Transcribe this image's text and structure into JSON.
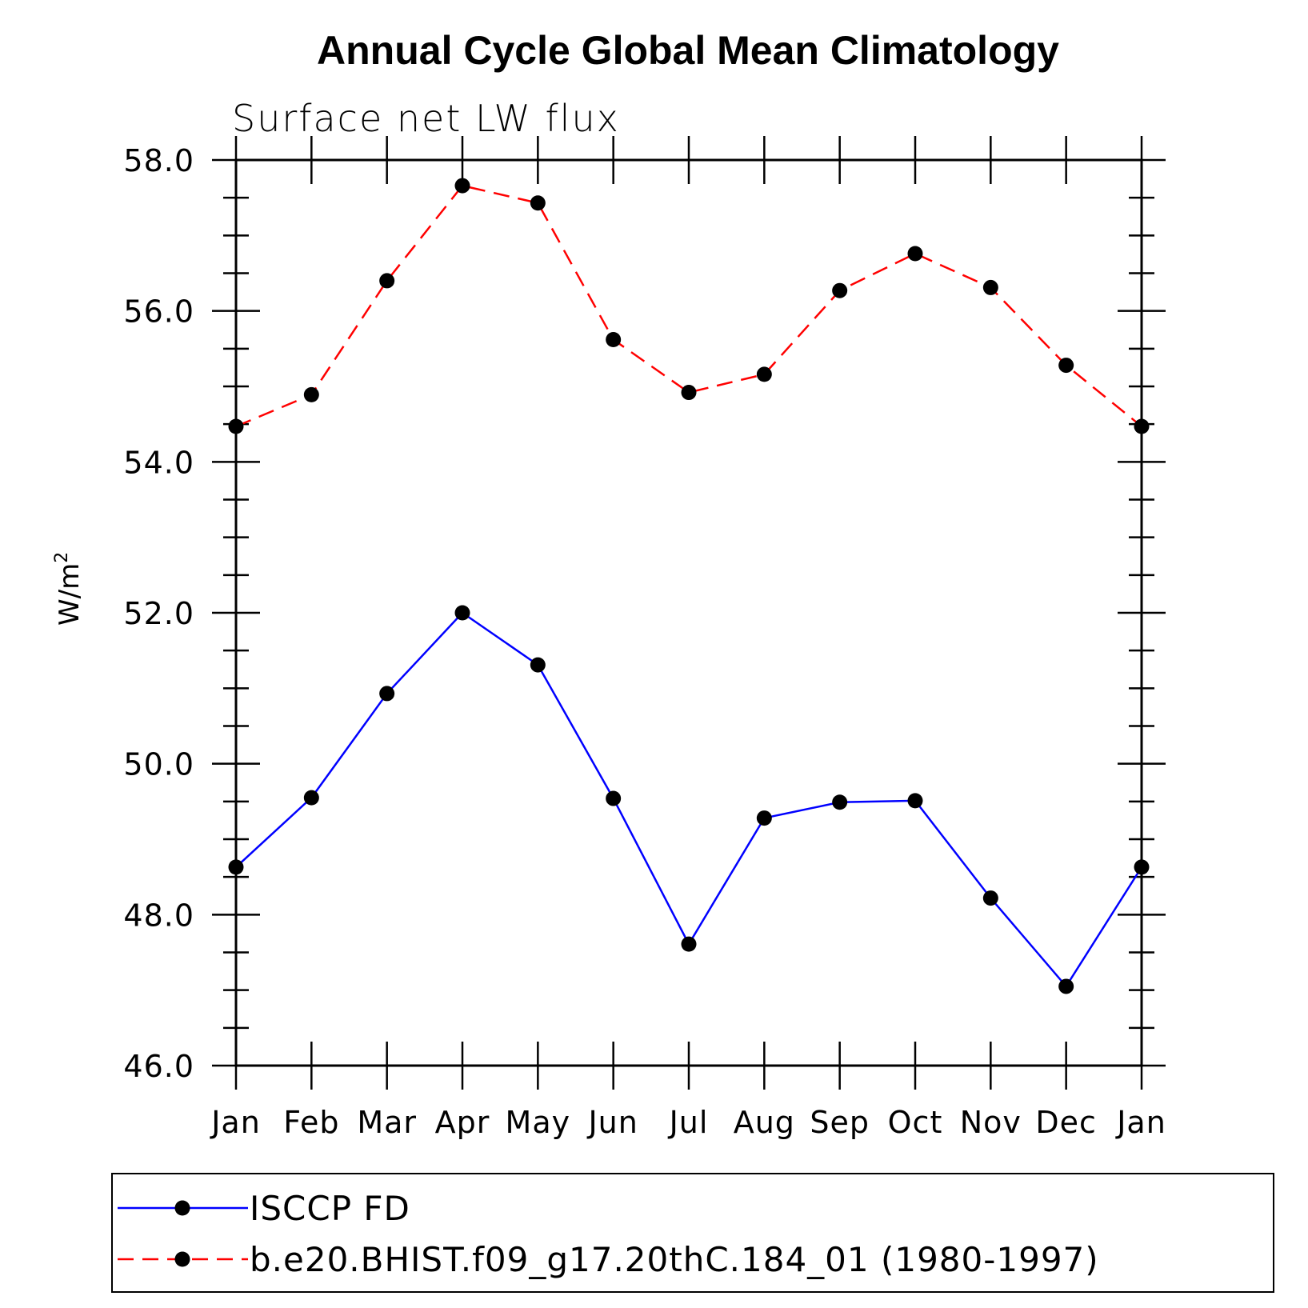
{
  "chart_data": {
    "type": "line",
    "title": "Annual Cycle Global Mean Climatology",
    "subtitle": "Surface net LW flux",
    "ylabel": "W/m",
    "ylabel_superscript": "2",
    "xlabel": "",
    "categories": [
      "Jan",
      "Feb",
      "Mar",
      "Apr",
      "May",
      "Jun",
      "Jul",
      "Aug",
      "Sep",
      "Oct",
      "Nov",
      "Dec",
      "Jan"
    ],
    "ylim": [
      46.0,
      58.0
    ],
    "yticks": [
      46.0,
      48.0,
      50.0,
      52.0,
      54.0,
      56.0,
      58.0
    ],
    "ytick_labels": [
      "46.0",
      "48.0",
      "50.0",
      "52.0",
      "54.0",
      "56.0",
      "58.0"
    ],
    "grid": false,
    "legend_position": "bottom",
    "series": [
      {
        "name": "ISCCP FD",
        "color": "#0000ff",
        "dash": "solid",
        "values": [
          48.63,
          49.55,
          50.93,
          52.0,
          51.31,
          49.54,
          47.61,
          49.28,
          49.49,
          49.51,
          48.22,
          47.05,
          48.63
        ]
      },
      {
        "name": "b.e20.BHIST.f09_g17.20thC.184_01 (1980-1997)",
        "color": "#ff0000",
        "dash": "dashed",
        "values": [
          54.47,
          54.89,
          56.4,
          57.66,
          57.43,
          55.62,
          54.92,
          55.16,
          56.27,
          56.76,
          56.31,
          55.28,
          54.47
        ]
      }
    ]
  }
}
